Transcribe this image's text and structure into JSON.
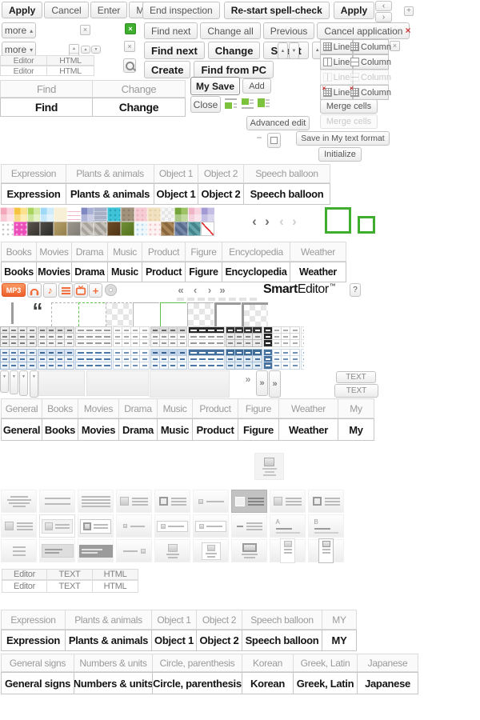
{
  "icons": {
    "close": "×",
    "plus": "+",
    "minus": "−",
    "arrow_up": "▲",
    "arrow_down": "▼",
    "chevron_left": "‹",
    "chevron_right": "›",
    "first": "«",
    "last": "»",
    "more_up": "▴",
    "more_down": "▾",
    "music_note": "♪",
    "quote": "“"
  },
  "colors": {
    "green": "#3fae2e",
    "lime": "#7cc23d",
    "orange": "#f26a38",
    "red": "#cf3a3a",
    "blue_dash": "#4a76a8"
  },
  "top_left_buttons": [
    {
      "label": "Apply",
      "bold": true
    },
    {
      "label": "Cancel",
      "bold": false
    },
    {
      "label": "Enter",
      "bold": false
    },
    {
      "label": "Modify",
      "bold": false
    }
  ],
  "spell_row1": [
    {
      "label": "End inspection",
      "bold": false
    },
    {
      "label": "Re-start spell-check",
      "bold": true
    },
    {
      "label": "Apply",
      "bold": true
    }
  ],
  "spell_row2": [
    {
      "label": "Find next",
      "bold": false
    },
    {
      "label": "Change all",
      "bold": false
    },
    {
      "label": "Previous",
      "bold": false
    },
    {
      "label": "Cancel application",
      "bold": false
    }
  ],
  "find_row3": [
    {
      "label": "Find next",
      "bold": true
    },
    {
      "label": "Change",
      "bold": true
    },
    {
      "label": "Select",
      "bold": true
    }
  ],
  "create_row": [
    {
      "label": "Create",
      "bold": true
    },
    {
      "label": "Find from PC",
      "bold": true
    }
  ],
  "more_label": "more",
  "editor_html_tabs": [
    "Editor",
    "HTML"
  ],
  "find_change_tabs": [
    "Find",
    "Change"
  ],
  "my_save_label": "My Save",
  "add_label": "Add",
  "close_label": "Close",
  "advanced_edit_label": "Advanced edit",
  "line_column_rows": [
    {
      "line": "Line",
      "column": "Column",
      "state": "normal"
    },
    {
      "line": "Line",
      "column": "Column",
      "state": "normal"
    },
    {
      "line": "Line",
      "column": "Column",
      "state": "disabled"
    },
    {
      "line": "Line",
      "column": "Column",
      "state": "delete"
    }
  ],
  "merge_buttons": [
    {
      "label": "Merge cells",
      "disabled": false
    },
    {
      "label": "Merge cells",
      "disabled": true
    }
  ],
  "save_format_label": "Save in My text format",
  "initialize_label": "Initialize",
  "sticker_tabs": [
    "Expression",
    "Plants & animals",
    "Object 1",
    "Object 2",
    "Speech balloon"
  ],
  "category_tabs": [
    "Books",
    "Movies",
    "Drama",
    "Music",
    "Product",
    "Figure",
    "Encyclopedia",
    "Weather"
  ],
  "mp3_label": "MP3",
  "logo": {
    "smart": "Smart",
    "editor": "Editor",
    "tm": "™"
  },
  "help_label": "?",
  "text_buttons": [
    "TEXT",
    "TEXT"
  ],
  "general_tabs": [
    "General",
    "Books",
    "Movies",
    "Drama",
    "Music",
    "Product",
    "Figure",
    "Weather",
    "My"
  ],
  "editor_text_html_tabs": [
    "Editor",
    "TEXT",
    "HTML"
  ],
  "sticker_tabs_my": [
    "Expression",
    "Plants & animals",
    "Object 1",
    "Object 2",
    "Speech balloon",
    "MY"
  ],
  "signs_tabs": [
    "General signs",
    "Numbers & units",
    "Circle, parenthesis",
    "Korean",
    "Greek, Latin",
    "Japanese"
  ],
  "palette": {
    "rows": [
      [
        {
          "p": "quad",
          "c1": "#f4a7ba",
          "c2": "#fbd2dc"
        },
        {
          "p": "quad",
          "c1": "#f5c33f",
          "c2": "#fae28e"
        },
        {
          "p": "quad",
          "c1": "#a9d55f",
          "c2": "#d2eaa4"
        },
        {
          "p": "quad",
          "c1": "#9fd9f6",
          "c2": "#d0ecfb"
        },
        {
          "p": "solid",
          "c1": "#f7f0d7",
          "c2": "#f0e6bf"
        },
        {
          "p": "lines",
          "c1": "#ffffff",
          "c2": "#f2b9c7"
        },
        {
          "p": "quad",
          "c1": "#7f88c0",
          "c2": "#a9b0d6"
        },
        {
          "p": "lines",
          "c1": "#a8b0c8",
          "c2": "#c4cadc"
        },
        {
          "p": "dots",
          "c1": "#3ec3d9",
          "c2": "#2ba4b8"
        },
        {
          "p": "dots",
          "c1": "#a2937d",
          "c2": "#8b7d67"
        },
        {
          "p": "dots",
          "c1": "#f5ccd3",
          "c2": "#edb4bf"
        },
        {
          "p": "dots",
          "c1": "#f1e1c1",
          "c2": "#e5d0a5"
        },
        {
          "p": "check",
          "c1": "#f6f6f6",
          "c2": "#e5e5e5"
        },
        {
          "p": "quad",
          "c1": "#74a43a",
          "c2": "#9dc364"
        },
        {
          "p": "quad",
          "c1": "#edb5c6",
          "c2": "#f7d4df"
        },
        {
          "p": "quad",
          "c1": "#a29ad2",
          "c2": "#c4bde4"
        }
      ],
      [
        {
          "p": "dots",
          "c1": "#ffffff",
          "c2": "#c8c8c8"
        },
        {
          "p": "dots",
          "c1": "#eb4eb9",
          "c2": "#f8a6dc"
        },
        {
          "p": "photo",
          "c1": "#5b564e",
          "c2": "#36322d"
        },
        {
          "p": "photo",
          "c1": "#4d4b46",
          "c2": "#2d2b28"
        },
        {
          "p": "photo",
          "c1": "#b59e67",
          "c2": "#947f4d"
        },
        {
          "p": "photo",
          "c1": "#9c9890",
          "c2": "#807c74"
        },
        {
          "p": "stripe",
          "c1": "#c8c5be",
          "c2": "#a8a49c"
        },
        {
          "p": "stripe",
          "c1": "#c4c1ba",
          "c2": "#a29e96"
        },
        {
          "p": "photo",
          "c1": "#6e4d27",
          "c2": "#4d3416"
        },
        {
          "p": "photo",
          "c1": "#708f34",
          "c2": "#54701e"
        },
        {
          "p": "dots",
          "c1": "#eef7fc",
          "c2": "#badbee"
        },
        {
          "p": "dots",
          "c1": "#fdf2f2",
          "c2": "#f2c6cb"
        },
        {
          "p": "stripe",
          "c1": "#aa8558",
          "c2": "#89673e"
        },
        {
          "p": "stripe",
          "c1": "#7587a7",
          "c2": "#596b8d"
        },
        {
          "p": "stripe",
          "c1": "#65a5ac",
          "c2": "#46848b"
        },
        {
          "p": "redline",
          "c1": "#ffffff",
          "c2": "#e03030"
        }
      ]
    ]
  },
  "corner_previews": [
    {
      "line": "dashed",
      "weight": "thin",
      "color": "#b3b3b3",
      "checker": false
    },
    {
      "line": "dashed",
      "weight": "thin",
      "color": "#5ec14b",
      "checker": false
    },
    {
      "line": "dashed",
      "weight": "thin",
      "color": "#b3b3b3",
      "checker": true
    },
    {
      "line": "solid",
      "weight": "thin",
      "color": "#b3b3b3",
      "checker": false
    },
    {
      "line": "solid",
      "weight": "thin",
      "color": "#5ec14b",
      "checker": false
    },
    {
      "line": "solid",
      "weight": "thin",
      "color": "#b3b3b3",
      "checker": true
    },
    {
      "line": "solid",
      "weight": "thick",
      "color": "#9b9b9b",
      "checker": false
    },
    {
      "line": "solid",
      "weight": "thick",
      "color": "#9b9b9b",
      "checker": true
    }
  ],
  "table_styles": {
    "gray": [
      {
        "mode": "grid",
        "bg": "#efefef",
        "border": "#b7b7b7",
        "dash": "#7d7d7d"
      },
      {
        "mode": "grid",
        "bg": "#f5f5f5",
        "border": "#c2c2c2",
        "dash": "#8a8a8a",
        "head": {
          "bg": "#e3e3e3",
          "dash": "#747474"
        }
      },
      {
        "mode": "hlines",
        "bg": "#fafafa",
        "border": "#cacaca",
        "dash": "#9a9a9a"
      },
      {
        "mode": "light",
        "bg": "#ffffff",
        "border": "#dcdcdc",
        "dash": "#ababab"
      },
      {
        "mode": "grid",
        "bg": "#f8f8f8",
        "border": "#cccccc",
        "dash": "#979797",
        "head": {
          "bg": "#dbdbdb",
          "dash": "#666666"
        }
      },
      {
        "mode": "hlines",
        "bg": "#fbfbfb",
        "border": "#cfcfcf",
        "dash": "#999999",
        "head": {
          "bg": "#262626",
          "dash": "#ffffff"
        }
      },
      {
        "mode": "grid",
        "bg": "#ebebeb",
        "border": "#b5b5b5",
        "dash": "#858585",
        "head": {
          "bg": "#303030",
          "dash": "#ffffff"
        }
      },
      {
        "mode": "light",
        "bg": "#ffffff",
        "border": "#d6d6d6",
        "dash": "#ababab",
        "col": {
          "bg": "#262626",
          "dash": "#ffffff"
        }
      },
      {
        "mode": "light",
        "bg": "#fdfdfd",
        "border": "#e0e0e0",
        "dash": "#bcbcbc"
      }
    ],
    "blue": [
      {
        "mode": "grid",
        "bg": "#ecf2f8",
        "border": "#9db5d0",
        "dash": "#4a76a8"
      },
      {
        "mode": "grid",
        "bg": "#f1f5fa",
        "border": "#a9bed7",
        "dash": "#4a76a8",
        "head": {
          "bg": "#d8e3f2",
          "dash": "#3c6695"
        }
      },
      {
        "mode": "hlines",
        "bg": "#f7fafc",
        "border": "#b4c7dc",
        "dash": "#4a76a8"
      },
      {
        "mode": "light",
        "bg": "#ffffff",
        "border": "#c8d7e8",
        "dash": "#6f93b8"
      },
      {
        "mode": "grid",
        "bg": "#f4f8fb",
        "border": "#b8cade",
        "dash": "#4a76a8",
        "head": {
          "bg": "#c6d6ea",
          "dash": "#35608f"
        }
      },
      {
        "mode": "hlines",
        "bg": "#fafcfe",
        "border": "#c1d1e2",
        "dash": "#4a76a8",
        "head": {
          "bg": "#46719f",
          "dash": "#ffffff"
        }
      },
      {
        "mode": "grid",
        "bg": "#e3ebf5",
        "border": "#a4bbd4",
        "dash": "#44709e",
        "head": {
          "bg": "#3f6b99",
          "dash": "#ffffff"
        }
      },
      {
        "mode": "light",
        "bg": "#ffffff",
        "border": "#cad9e8",
        "dash": "#6f93b8",
        "col": {
          "bg": "#46719f",
          "dash": "#ffffff"
        }
      },
      {
        "mode": "light",
        "bg": "#fdfdfe",
        "border": "#d4dfec",
        "dash": "#98afc8"
      }
    ]
  },
  "layout_cards": {
    "single": {
      "kind": "img-top-center"
    },
    "rows": [
      [
        {
          "kind": "lines-center"
        },
        {
          "kind": "lines-two"
        },
        {
          "kind": "lines-full"
        },
        {
          "kind": "img-left"
        },
        {
          "kind": "img-left-frame"
        },
        {
          "kind": "sq-line"
        },
        {
          "kind": "img-left-selected"
        },
        {
          "kind": "img-left-2"
        },
        {
          "kind": "img-left-frame-2"
        }
      ],
      [
        {
          "kind": "img-left-3"
        },
        {
          "kind": "img-left-box"
        },
        {
          "kind": "img-left-box-2"
        },
        {
          "kind": "sq-line-2"
        },
        {
          "kind": "sq-line-box"
        },
        {
          "kind": "sq-line-box-2"
        },
        {
          "kind": "dash-lines"
        },
        {
          "kind": "letter",
          "label": "A"
        },
        {
          "kind": "letter",
          "label": "B"
        }
      ],
      [
        {
          "kind": "lines-short"
        },
        {
          "kind": "lines-graybox"
        },
        {
          "kind": "lines-darkbox"
        },
        {
          "kind": "line-sq"
        },
        {
          "kind": "img-top"
        },
        {
          "kind": "img-top-box"
        },
        {
          "kind": "img-top-wide"
        },
        {
          "kind": "vcard"
        },
        {
          "kind": "vcard-box"
        }
      ]
    ]
  }
}
